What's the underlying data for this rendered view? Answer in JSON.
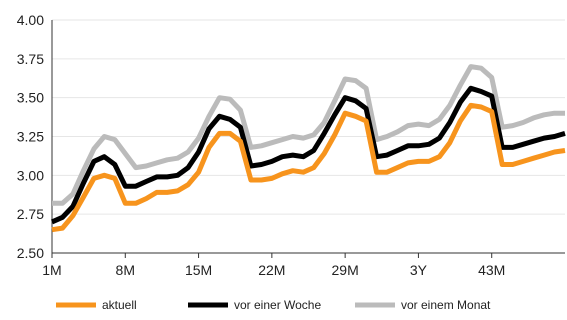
{
  "chart_data": {
    "type": "line",
    "title": "",
    "xlabel": "",
    "ylabel": "",
    "ylim": [
      2.5,
      4.0
    ],
    "yticks": [
      "2.50",
      "2.75",
      "3.00",
      "3.25",
      "3.50",
      "3.75",
      "4.00"
    ],
    "xticks": [
      {
        "month": 1,
        "label": "1M"
      },
      {
        "month": 8,
        "label": "8M"
      },
      {
        "month": 15,
        "label": "15M"
      },
      {
        "month": 22,
        "label": "22M"
      },
      {
        "month": 29,
        "label": "29M"
      },
      {
        "month": 36,
        "label": "3Y"
      },
      {
        "month": 43,
        "label": "43M"
      }
    ],
    "x": [
      1,
      2,
      3,
      4,
      5,
      6,
      7,
      8,
      9,
      10,
      11,
      12,
      13,
      14,
      15,
      16,
      17,
      18,
      19,
      20,
      21,
      22,
      23,
      24,
      25,
      26,
      27,
      28,
      29,
      30,
      31,
      32,
      33,
      34,
      35,
      36,
      37,
      38,
      39,
      40,
      41,
      42,
      43,
      44,
      45,
      46,
      47,
      48,
      49,
      50
    ],
    "grid": "horizontal",
    "legend": "bottom",
    "series": [
      {
        "name": "aktuell",
        "color": "#F7941D",
        "values": [
          2.65,
          2.66,
          2.74,
          2.86,
          2.98,
          3.0,
          2.98,
          2.82,
          2.82,
          2.85,
          2.89,
          2.89,
          2.9,
          2.94,
          3.02,
          3.18,
          3.27,
          3.27,
          3.22,
          2.97,
          2.97,
          2.98,
          3.01,
          3.03,
          3.02,
          3.05,
          3.14,
          3.26,
          3.4,
          3.38,
          3.35,
          3.02,
          3.02,
          3.05,
          3.08,
          3.09,
          3.09,
          3.12,
          3.21,
          3.35,
          3.45,
          3.44,
          3.41,
          3.07,
          3.07,
          3.09,
          3.11,
          3.13,
          3.15,
          3.16
        ]
      },
      {
        "name": "vor einer Woche",
        "color": "#000000",
        "values": [
          2.7,
          2.73,
          2.8,
          2.95,
          3.09,
          3.12,
          3.07,
          2.93,
          2.93,
          2.96,
          2.99,
          2.99,
          3.0,
          3.05,
          3.15,
          3.3,
          3.38,
          3.36,
          3.31,
          3.06,
          3.07,
          3.09,
          3.12,
          3.13,
          3.12,
          3.16,
          3.27,
          3.39,
          3.5,
          3.48,
          3.43,
          3.12,
          3.13,
          3.16,
          3.19,
          3.19,
          3.2,
          3.24,
          3.34,
          3.47,
          3.56,
          3.54,
          3.51,
          3.18,
          3.18,
          3.2,
          3.22,
          3.24,
          3.25,
          3.27
        ]
      },
      {
        "name": "vor einem Monat",
        "color": "#BBBBBB",
        "values": [
          2.82,
          2.82,
          2.88,
          3.03,
          3.17,
          3.25,
          3.23,
          3.14,
          3.05,
          3.06,
          3.08,
          3.1,
          3.11,
          3.15,
          3.24,
          3.38,
          3.5,
          3.49,
          3.42,
          3.18,
          3.19,
          3.21,
          3.23,
          3.25,
          3.24,
          3.26,
          3.34,
          3.48,
          3.62,
          3.61,
          3.56,
          3.23,
          3.25,
          3.28,
          3.32,
          3.33,
          3.32,
          3.36,
          3.45,
          3.58,
          3.7,
          3.69,
          3.63,
          3.31,
          3.32,
          3.34,
          3.37,
          3.39,
          3.4,
          3.4
        ]
      }
    ]
  }
}
